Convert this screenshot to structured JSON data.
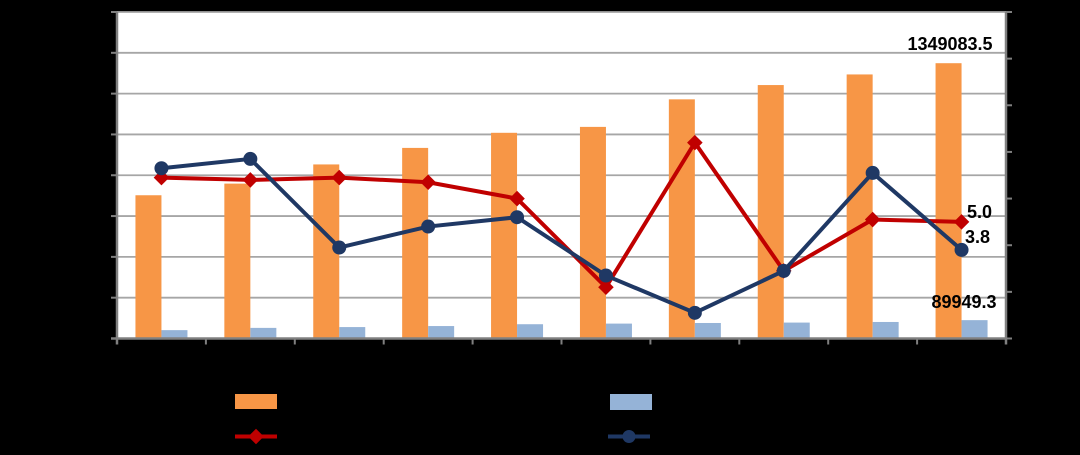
{
  "page": {
    "background": "#000000"
  },
  "chart_data": {
    "type": "combo-bar-line",
    "categories": [
      "",
      "",
      "",
      "",
      "",
      "",
      "",
      "",
      "",
      ""
    ],
    "series": [
      {
        "name": "bar-primary",
        "type": "bar",
        "axis": "left",
        "color": "#F79646",
        "values": [
          702000,
          759000,
          853000,
          934000,
          1008000,
          1037000,
          1172000,
          1242000,
          1294000,
          1349083.5
        ]
      },
      {
        "name": "bar-secondary",
        "type": "bar",
        "axis": "left",
        "color": "#95B3D7",
        "values": [
          41000,
          52000,
          56000,
          61000,
          70000,
          73000,
          76000,
          78000,
          81000,
          89949.3
        ]
      },
      {
        "name": "line-red",
        "type": "line",
        "marker": "diamond",
        "axis": "right",
        "color": "#C00000",
        "values": [
          6.9,
          6.8,
          6.9,
          6.7,
          6.0,
          2.2,
          8.4,
          2.9,
          5.1,
          5.0
        ]
      },
      {
        "name": "line-navy",
        "type": "line",
        "marker": "circle",
        "axis": "right",
        "color": "#1F3864",
        "values": [
          7.3,
          7.7,
          3.9,
          4.8,
          5.2,
          2.7,
          1.1,
          2.9,
          7.1,
          3.8
        ]
      }
    ],
    "axes": {
      "left": {
        "min": 0,
        "max": 1600000,
        "step": 200000,
        "labels_visible": false
      },
      "right": {
        "min": 0,
        "max": 14,
        "step": 2,
        "labels_visible": false
      },
      "x": {
        "tick_count": 11,
        "labels_visible": false
      }
    },
    "grid": true,
    "annotations": [
      {
        "text": "1349083.5",
        "series": "bar-primary",
        "point": 9
      },
      {
        "text": "5.0",
        "series": "line-red",
        "point": 9
      },
      {
        "text": "3.8",
        "series": "line-navy",
        "point": 9
      },
      {
        "text": "89949.3",
        "series": "bar-secondary",
        "point": 9
      }
    ],
    "legend": {
      "position": "bottom",
      "labels_visible": false,
      "items": [
        {
          "swatch": "bar",
          "color": "#F79646"
        },
        {
          "swatch": "line-diamond",
          "color": "#C00000"
        },
        {
          "swatch": "bar",
          "color": "#95B3D7"
        },
        {
          "swatch": "line-circle",
          "color": "#1F3864"
        }
      ]
    },
    "colors": {
      "page_background": "#000000",
      "plot_background": "#FFFFFF",
      "gridline": "#A6A6A6",
      "axis": "#808080",
      "data_label": "#000000"
    }
  }
}
